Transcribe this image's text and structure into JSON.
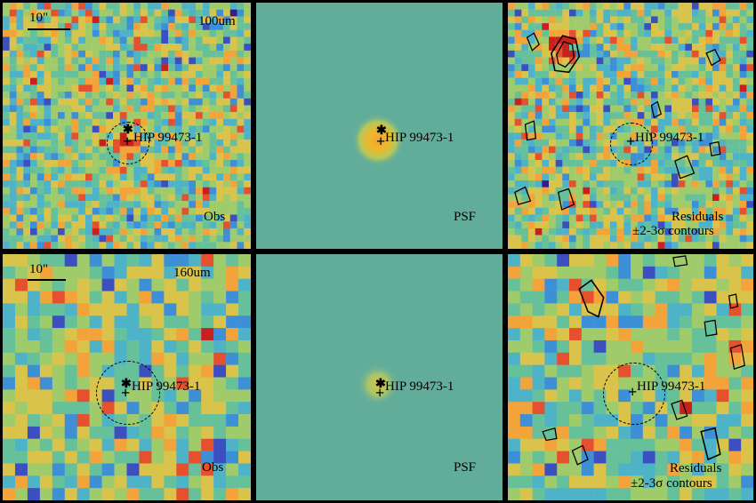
{
  "colors": {
    "frame": "#000000",
    "psf_background": "#62ad9a",
    "psf_core_100": "#f1b628",
    "psf_core_160": "#c9c45a",
    "colormap": [
      "#3a1b8a",
      "#3b4fc0",
      "#3d8fd6",
      "#4fb3c8",
      "#66c19b",
      "#9fcb6a",
      "#d9c34a",
      "#f2a33a",
      "#e5502e",
      "#c8201f"
    ]
  },
  "source_name": "HIP 99473-1",
  "scale_bar_label": "10\"",
  "rows": [
    {
      "band": "100um",
      "panels": {
        "obs_label": "Obs",
        "psf_label": "PSF",
        "residual_label_1": "Residuals",
        "residual_label_2": "±2-3σ contours"
      },
      "psf_axis_ticks": [
        "30",
        "20",
        "10"
      ]
    },
    {
      "band": "160um",
      "panels": {
        "obs_label": "Obs",
        "psf_label": "PSF",
        "residual_label_1": "Residuals",
        "residual_label_2": "±2-3σ contours"
      },
      "psf_axis_ticks": [
        "20",
        "15",
        "10",
        "5"
      ]
    }
  ]
}
